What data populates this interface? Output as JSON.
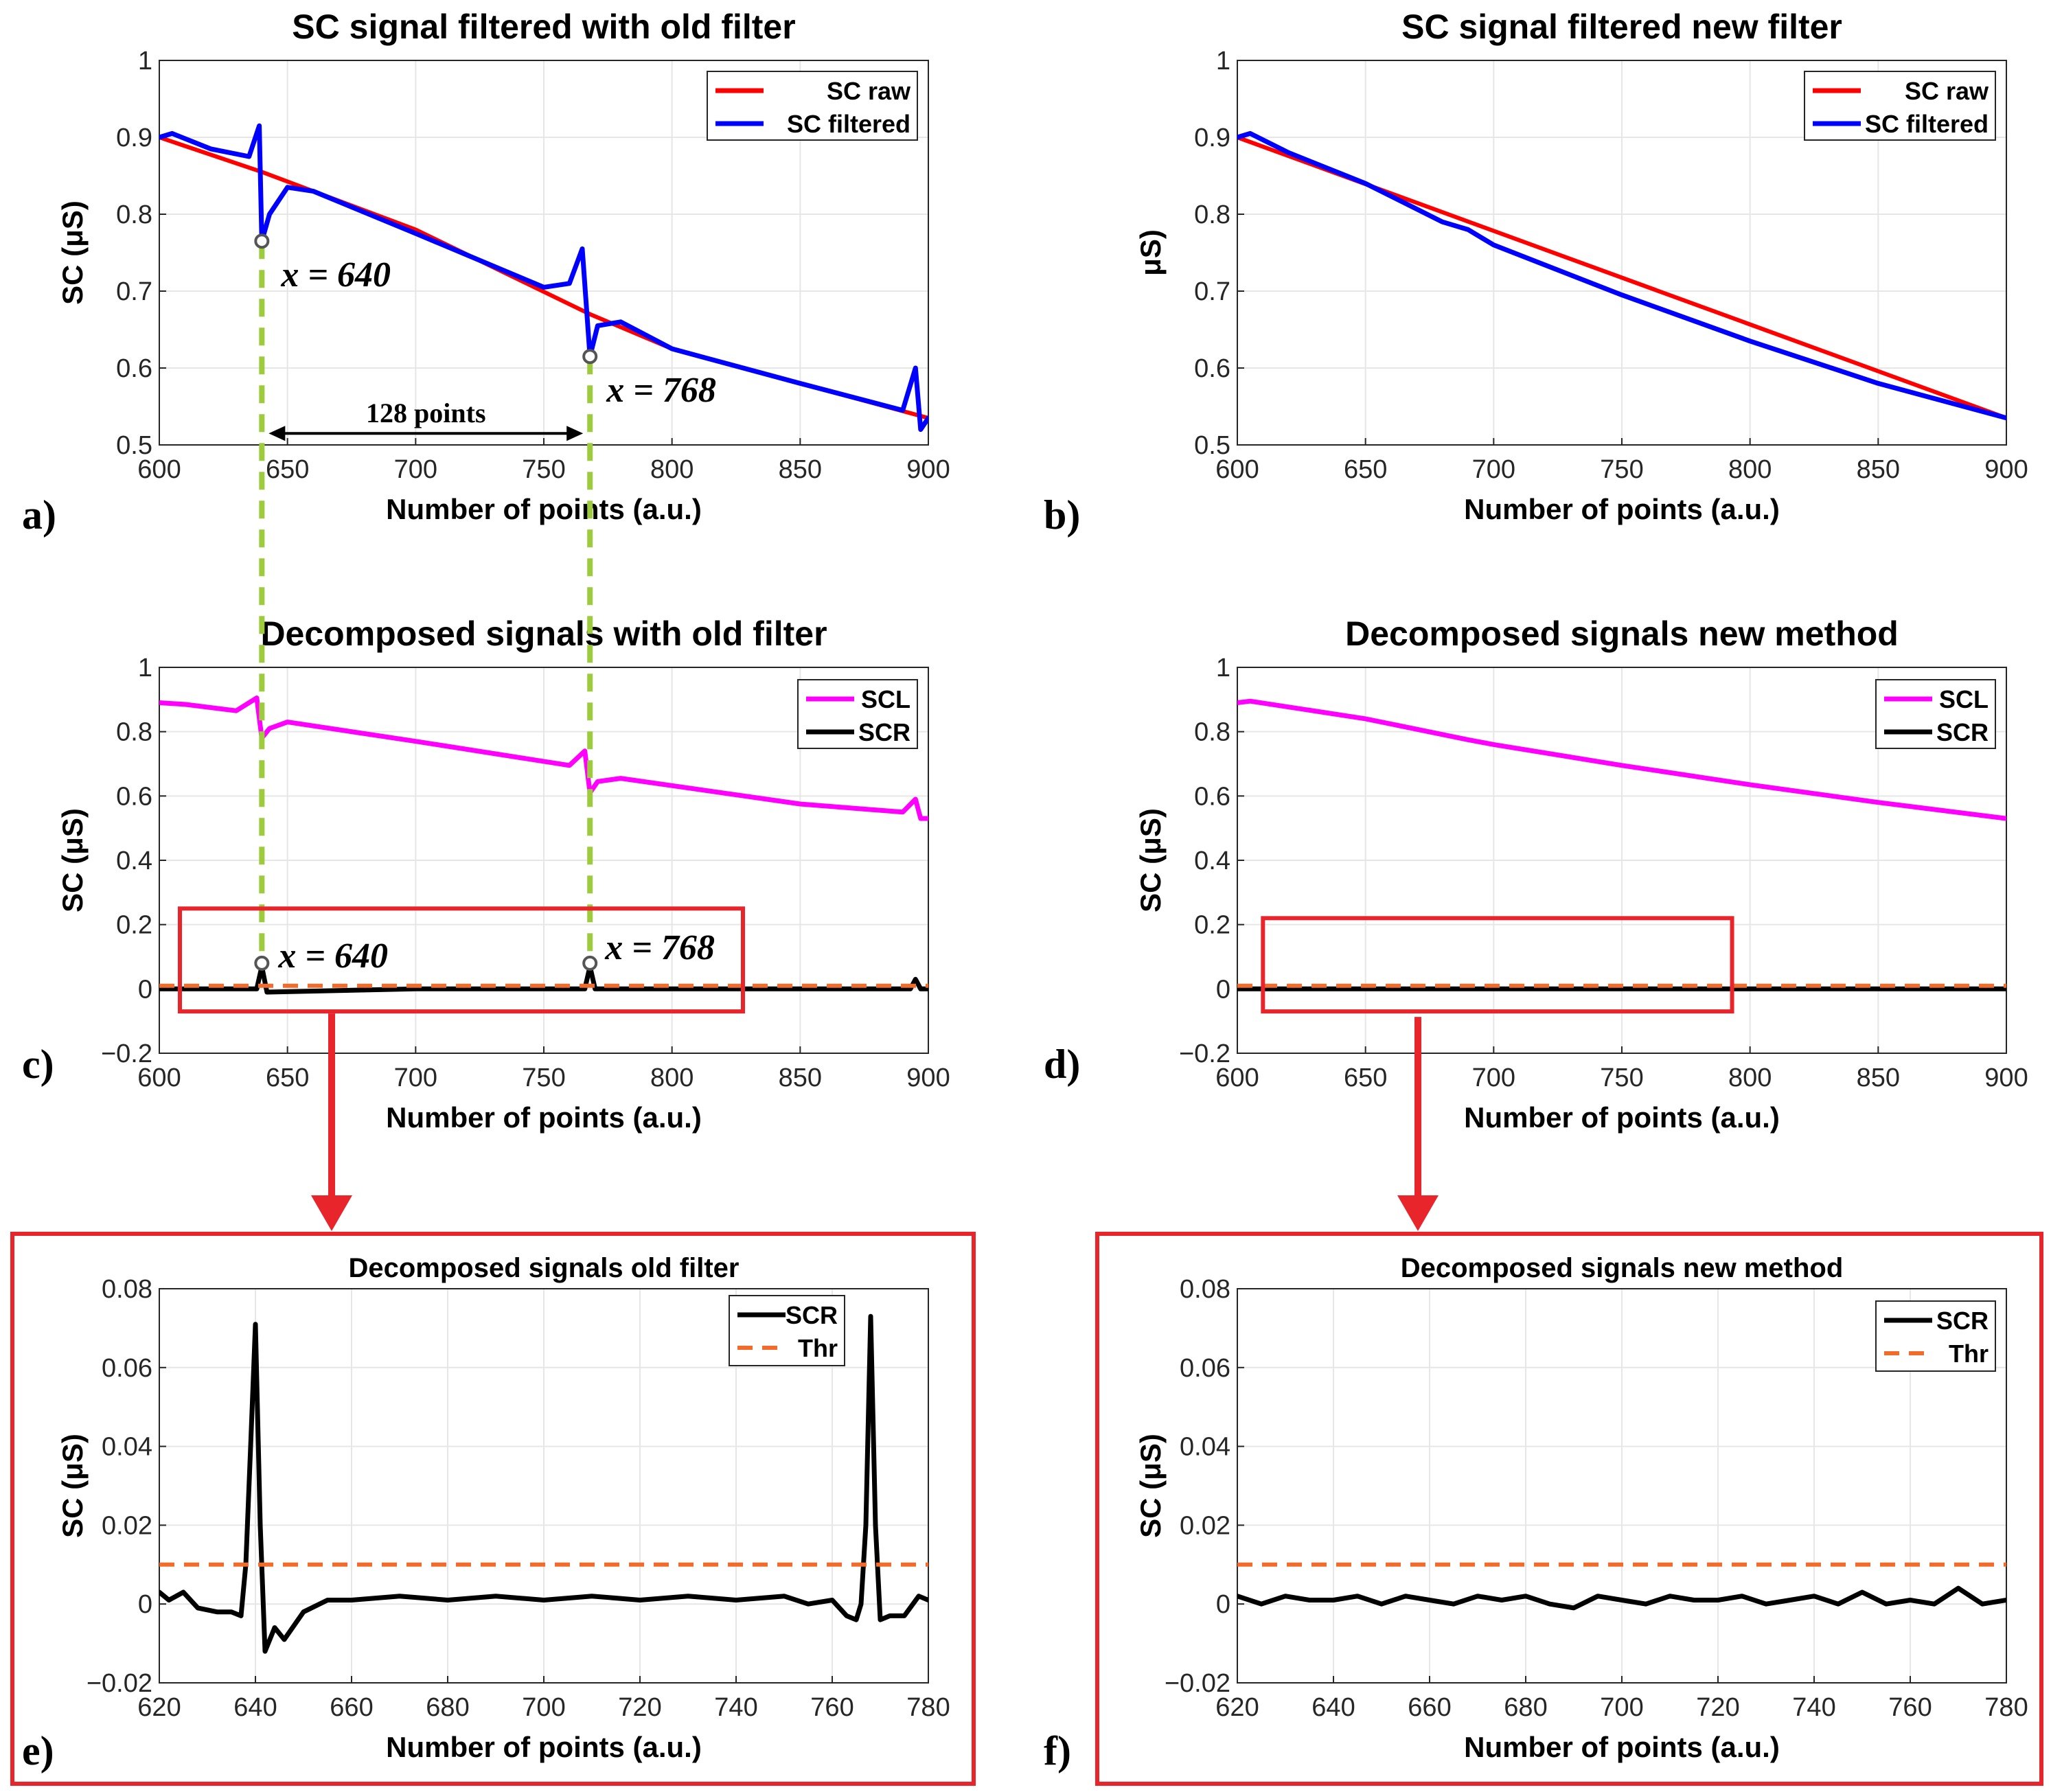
{
  "figure": {
    "panel_letters": [
      "a)",
      "b)",
      "c)",
      "d)",
      "e)",
      "f)"
    ],
    "colors": {
      "raw": "#ff0000",
      "filtered": "#0000ff",
      "scl": "#ff00ff",
      "scr": "#000000",
      "thr": "#f26b2a",
      "highlight": "#e8252b",
      "marker": "#9ccb3c"
    }
  },
  "chart_data": [
    {
      "id": "a",
      "type": "line",
      "title": "SC signal filtered with old filter",
      "xlabel": "Number of points (a.u.)",
      "ylabel": "SC (μS)",
      "xlim": [
        600,
        900
      ],
      "ylim": [
        0.5,
        1
      ],
      "xticks": [
        "600",
        "650",
        "700",
        "750",
        "800",
        "850",
        "900"
      ],
      "yticks": [
        "0.5",
        "0.6",
        "0.7",
        "0.8",
        "0.9",
        "1"
      ],
      "legend": {
        "position": "top-right",
        "entries": [
          "SC raw",
          "SC filtered"
        ]
      },
      "series": [
        {
          "name": "SC raw",
          "color": "#ff0000",
          "x": [
            600,
            640,
            700,
            768,
            800,
            850,
            900
          ],
          "y": [
            0.9,
            0.855,
            0.78,
            0.67,
            0.625,
            0.58,
            0.535
          ]
        },
        {
          "name": "SC filtered",
          "color": "#0000ff",
          "x": [
            600,
            605,
            620,
            635,
            639,
            640,
            643,
            650,
            660,
            700,
            750,
            760,
            765,
            768,
            771,
            780,
            800,
            850,
            890,
            895,
            897,
            900
          ],
          "y": [
            0.9,
            0.905,
            0.885,
            0.875,
            0.915,
            0.765,
            0.8,
            0.835,
            0.83,
            0.775,
            0.705,
            0.71,
            0.755,
            0.615,
            0.655,
            0.66,
            0.625,
            0.58,
            0.545,
            0.6,
            0.52,
            0.535
          ]
        }
      ],
      "annotations": [
        {
          "text": "x = 640",
          "x": 640,
          "y": 0.765
        },
        {
          "text": "x = 768",
          "x": 768,
          "y": 0.615
        },
        {
          "text": "128 points",
          "from": 640,
          "to": 768
        }
      ]
    },
    {
      "id": "b",
      "type": "line",
      "title": "SC signal filtered new filter",
      "xlabel": "Number of points (a.u.)",
      "ylabel": "μS)",
      "xlim": [
        600,
        900
      ],
      "ylim": [
        0.5,
        1
      ],
      "xticks": [
        "600",
        "650",
        "700",
        "750",
        "800",
        "850",
        "900"
      ],
      "yticks": [
        "0.5",
        "0.6",
        "0.7",
        "0.8",
        "0.9",
        "1"
      ],
      "legend": {
        "position": "top-right",
        "entries": [
          "SC raw",
          "SC filtered"
        ]
      },
      "series": [
        {
          "name": "SC raw",
          "color": "#ff0000",
          "x": [
            600,
            900
          ],
          "y": [
            0.9,
            0.535
          ]
        },
        {
          "name": "SC filtered",
          "color": "#0000ff",
          "x": [
            600,
            605,
            620,
            650,
            680,
            690,
            700,
            750,
            800,
            850,
            900
          ],
          "y": [
            0.9,
            0.905,
            0.88,
            0.84,
            0.79,
            0.78,
            0.76,
            0.695,
            0.635,
            0.58,
            0.535
          ]
        }
      ]
    },
    {
      "id": "c",
      "type": "line",
      "title": "Decomposed signals with old filter",
      "xlabel": "Number of points (a.u.)",
      "ylabel": "SC (μS)",
      "xlim": [
        600,
        900
      ],
      "ylim": [
        -0.2,
        1
      ],
      "xticks": [
        "600",
        "650",
        "700",
        "750",
        "800",
        "850",
        "900"
      ],
      "yticks": [
        "−0.2",
        "0",
        "0.2",
        "0.4",
        "0.6",
        "0.8",
        "1"
      ],
      "legend": {
        "position": "top-right",
        "entries": [
          "SCL",
          "SCR"
        ]
      },
      "series": [
        {
          "name": "SCL",
          "color": "#ff00ff",
          "x": [
            600,
            610,
            630,
            638,
            640,
            643,
            650,
            700,
            760,
            766,
            768,
            771,
            780,
            850,
            890,
            895,
            897,
            900
          ],
          "y": [
            0.89,
            0.885,
            0.865,
            0.905,
            0.78,
            0.81,
            0.83,
            0.77,
            0.695,
            0.74,
            0.61,
            0.645,
            0.655,
            0.575,
            0.55,
            0.59,
            0.53,
            0.53
          ]
        },
        {
          "name": "SCR",
          "color": "#000000",
          "x": [
            600,
            638,
            640,
            642,
            700,
            766,
            768,
            770,
            850,
            893,
            895,
            897,
            900
          ],
          "y": [
            0,
            0,
            0.07,
            -0.01,
            0,
            0,
            0.07,
            0,
            0,
            0,
            0.03,
            0,
            0
          ]
        },
        {
          "name": "Thr",
          "color": "#f26b2a",
          "x": [
            600,
            900
          ],
          "y": [
            0.01,
            0.01
          ]
        }
      ],
      "annotations": [
        {
          "text": "x = 640",
          "x": 640,
          "y": 0.08
        },
        {
          "text": "x = 768",
          "x": 768,
          "y": 0.08
        }
      ]
    },
    {
      "id": "d",
      "type": "line",
      "title": "Decomposed signals new method",
      "xlabel": "Number of points (a.u.)",
      "ylabel": "SC (μS)",
      "xlim": [
        600,
        900
      ],
      "ylim": [
        -0.2,
        1
      ],
      "xticks": [
        "600",
        "650",
        "700",
        "750",
        "800",
        "850",
        "900"
      ],
      "yticks": [
        "−0.2",
        "0",
        "0.2",
        "0.4",
        "0.6",
        "0.8",
        "1"
      ],
      "legend": {
        "position": "top-right",
        "entries": [
          "SCL",
          "SCR"
        ]
      },
      "series": [
        {
          "name": "SCL",
          "color": "#ff00ff",
          "x": [
            600,
            605,
            650,
            690,
            700,
            750,
            800,
            850,
            900
          ],
          "y": [
            0.89,
            0.895,
            0.84,
            0.775,
            0.76,
            0.695,
            0.635,
            0.58,
            0.53
          ]
        },
        {
          "name": "SCR",
          "color": "#000000",
          "x": [
            600,
            900
          ],
          "y": [
            0,
            0
          ]
        },
        {
          "name": "Thr",
          "color": "#f26b2a",
          "x": [
            600,
            900
          ],
          "y": [
            0.01,
            0.01
          ]
        }
      ]
    },
    {
      "id": "e",
      "type": "line",
      "title": "Decomposed signals old filter",
      "xlabel": "Number of points (a.u.)",
      "ylabel": "SC (μS)",
      "xlim": [
        620,
        780
      ],
      "ylim": [
        -0.02,
        0.08
      ],
      "xticks": [
        "620",
        "640",
        "660",
        "680",
        "700",
        "720",
        "740",
        "760",
        "780"
      ],
      "yticks": [
        "−0.02",
        "0",
        "0.02",
        "0.04",
        "0.06",
        "0.08"
      ],
      "legend": {
        "position": "top-right",
        "entries": [
          "SCR",
          "Thr"
        ]
      },
      "series": [
        {
          "name": "SCR",
          "color": "#000000",
          "x": [
            620,
            622,
            625,
            628,
            632,
            635,
            637,
            638,
            639,
            640,
            641,
            642,
            644,
            646,
            650,
            655,
            660,
            670,
            680,
            690,
            700,
            710,
            720,
            730,
            740,
            750,
            755,
            760,
            763,
            765,
            766,
            767,
            768,
            769,
            770,
            772,
            775,
            778,
            780
          ],
          "y": [
            0.003,
            0.001,
            0.003,
            -0.001,
            -0.002,
            -0.002,
            -0.003,
            0.01,
            0.04,
            0.071,
            0.02,
            -0.012,
            -0.006,
            -0.009,
            -0.002,
            0.001,
            0.001,
            0.002,
            0.001,
            0.002,
            0.001,
            0.002,
            0.001,
            0.002,
            0.001,
            0.002,
            0.0,
            0.001,
            -0.003,
            -0.004,
            0.0,
            0.02,
            0.073,
            0.02,
            -0.004,
            -0.003,
            -0.003,
            0.002,
            0.001
          ]
        },
        {
          "name": "Thr",
          "color": "#f26b2a",
          "x": [
            620,
            780
          ],
          "y": [
            0.01,
            0.01
          ]
        }
      ]
    },
    {
      "id": "f",
      "type": "line",
      "title": "Decomposed signals new method",
      "xlabel": "Number of points (a.u.)",
      "ylabel": "SC (μS)",
      "xlim": [
        620,
        780
      ],
      "ylim": [
        -0.02,
        0.08
      ],
      "xticks": [
        "620",
        "640",
        "660",
        "680",
        "700",
        "720",
        "740",
        "760",
        "780"
      ],
      "yticks": [
        "−0.02",
        "0",
        "0.02",
        "0.04",
        "0.06",
        "0.08"
      ],
      "legend": {
        "position": "top-right",
        "entries": [
          "SCR",
          "Thr"
        ]
      },
      "series": [
        {
          "name": "SCR",
          "color": "#000000",
          "x": [
            620,
            625,
            630,
            635,
            640,
            645,
            650,
            655,
            660,
            665,
            670,
            675,
            680,
            685,
            690,
            695,
            700,
            705,
            710,
            715,
            720,
            725,
            730,
            735,
            740,
            745,
            750,
            755,
            760,
            765,
            770,
            775,
            780
          ],
          "y": [
            0.002,
            0.0,
            0.002,
            0.001,
            0.001,
            0.002,
            0.0,
            0.002,
            0.001,
            0.0,
            0.002,
            0.001,
            0.002,
            0.0,
            -0.001,
            0.002,
            0.001,
            0.0,
            0.002,
            0.001,
            0.001,
            0.002,
            0.0,
            0.001,
            0.002,
            0.0,
            0.003,
            0.0,
            0.001,
            0.0,
            0.004,
            0.0,
            0.001
          ]
        },
        {
          "name": "Thr",
          "color": "#f26b2a",
          "x": [
            620,
            780
          ],
          "y": [
            0.01,
            0.01
          ]
        }
      ]
    }
  ]
}
